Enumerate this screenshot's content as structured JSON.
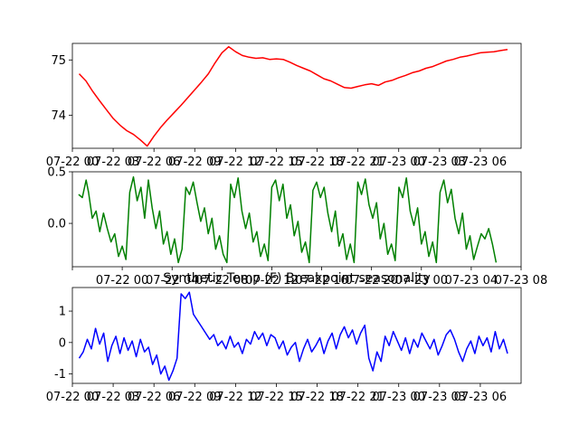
{
  "chart_data": [
    {
      "type": "line",
      "title": "",
      "xlabel": "",
      "ylabel": "",
      "color": "#ff0000",
      "grid": false,
      "ylim": [
        73.4,
        75.3
      ],
      "yticks": [
        74,
        75
      ],
      "xlim": [
        0,
        33
      ],
      "xticks": [
        0,
        3,
        6,
        9,
        12,
        15,
        18,
        21,
        24,
        27,
        30
      ],
      "xtick_labels": [
        "07-22 00",
        "07-22 03",
        "07-22 06",
        "07-22 09",
        "07-22 12",
        "07-22 15",
        "07-22 18",
        "07-22 21",
        "07-23 00",
        "07-23 03",
        "07-23 06"
      ],
      "series": [
        {
          "x": [
            0.5,
            1,
            1.5,
            2,
            2.5,
            3,
            3.5,
            4,
            4.5,
            5,
            5.5,
            6,
            6.5,
            7,
            7.5,
            8,
            8.5,
            9,
            9.5,
            10,
            10.5,
            11,
            11.5,
            12,
            12.5,
            13,
            13.5,
            14,
            14.5,
            15,
            15.5,
            16,
            16.5,
            17,
            17.5,
            18,
            18.5,
            19,
            19.5,
            20,
            20.5,
            21,
            21.5,
            22,
            22.5,
            23,
            23.5,
            24,
            24.5,
            25,
            25.5,
            26,
            26.5,
            27,
            27.5,
            28,
            28.5,
            29,
            29.5,
            30,
            30.5,
            31,
            31.5,
            32
          ],
          "y": [
            74.75,
            74.62,
            74.43,
            74.26,
            74.1,
            73.94,
            73.82,
            73.72,
            73.65,
            73.55,
            73.44,
            73.62,
            73.78,
            73.92,
            74.05,
            74.18,
            74.32,
            74.46,
            74.6,
            74.75,
            74.95,
            75.13,
            75.24,
            75.15,
            75.08,
            75.05,
            75.03,
            75.04,
            75.01,
            75.02,
            75.01,
            74.96,
            74.9,
            74.85,
            74.8,
            74.73,
            74.66,
            74.62,
            74.56,
            74.5,
            74.49,
            74.52,
            74.55,
            74.57,
            74.54,
            74.6,
            74.63,
            74.68,
            74.72,
            74.77,
            74.8,
            74.85,
            74.88,
            74.93,
            74.98,
            75.01,
            75.05,
            75.07,
            75.1,
            75.13,
            75.14,
            75.15,
            75.17,
            75.19
          ]
        }
      ]
    },
    {
      "type": "line",
      "title": "",
      "xlabel": "",
      "ylabel": "",
      "color": "#008000",
      "grid": false,
      "ylim": [
        -0.42,
        0.5
      ],
      "yticks": [
        0.0,
        0.5
      ],
      "ytick_labels": [
        "0.0",
        "0.5"
      ],
      "xlim": [
        0,
        36
      ],
      "xticks": [
        0,
        4,
        8,
        12,
        16,
        20,
        24,
        28,
        32,
        36
      ],
      "xtick_labels": [
        "",
        "07-22 00",
        "07-22 04",
        "07-22 08",
        "07-22 12",
        "07-22 16",
        "07-22 20",
        "07-23 00",
        "07-23 04",
        "07-23 08"
      ],
      "series": [
        {
          "x": [
            0.5,
            0.8,
            1.1,
            1.3,
            1.6,
            1.9,
            2.2,
            2.5,
            2.8,
            3.1,
            3.4,
            3.7,
            4.0,
            4.3,
            4.6,
            4.9,
            5.2,
            5.5,
            5.8,
            6.1,
            6.4,
            6.7,
            7.0,
            7.3,
            7.6,
            7.9,
            8.2,
            8.5,
            8.8,
            9.1,
            9.4,
            9.7,
            10.0,
            10.3,
            10.6,
            10.9,
            11.2,
            11.5,
            11.8,
            12.1,
            12.4,
            12.7,
            13.0,
            13.3,
            13.6,
            13.9,
            14.2,
            14.5,
            14.8,
            15.1,
            15.4,
            15.7,
            16.0,
            16.3,
            16.6,
            16.9,
            17.2,
            17.5,
            17.8,
            18.1,
            18.4,
            18.7,
            19.0,
            19.3,
            19.6,
            19.9,
            20.2,
            20.5,
            20.8,
            21.1,
            21.4,
            21.7,
            22.0,
            22.3,
            22.6,
            22.9,
            23.2,
            23.5,
            23.8,
            24.1,
            24.4,
            24.7,
            25.0,
            25.3,
            25.6,
            25.9,
            26.2,
            26.5,
            26.8,
            27.1,
            27.4,
            27.7,
            28.0,
            28.3,
            28.6,
            28.9,
            29.2,
            29.5,
            29.8,
            30.1,
            30.4,
            30.7,
            31.0,
            31.3,
            31.6,
            31.9,
            32.2,
            32.5,
            32.8,
            33.1,
            33.4,
            33.7,
            34.0
          ],
          "y": [
            0.28,
            0.25,
            0.42,
            0.3,
            0.05,
            0.12,
            -0.08,
            0.1,
            -0.05,
            -0.18,
            -0.1,
            -0.32,
            -0.22,
            -0.35,
            0.3,
            0.45,
            0.22,
            0.35,
            0.05,
            0.42,
            0.15,
            -0.05,
            0.12,
            -0.2,
            -0.08,
            -0.3,
            -0.15,
            -0.38,
            -0.25,
            0.35,
            0.28,
            0.4,
            0.2,
            0.02,
            0.15,
            -0.1,
            0.05,
            -0.25,
            -0.12,
            -0.3,
            -0.38,
            0.38,
            0.25,
            0.44,
            0.12,
            -0.05,
            0.1,
            -0.18,
            -0.08,
            -0.32,
            -0.2,
            -0.36,
            0.35,
            0.42,
            0.22,
            0.38,
            0.05,
            0.18,
            -0.12,
            0.02,
            -0.28,
            -0.18,
            -0.38,
            0.32,
            0.4,
            0.25,
            0.35,
            0.1,
            -0.08,
            0.12,
            -0.22,
            -0.1,
            -0.35,
            -0.2,
            -0.38,
            0.4,
            0.28,
            0.43,
            0.18,
            0.05,
            0.2,
            -0.15,
            0.0,
            -0.3,
            -0.2,
            -0.36,
            0.35,
            0.25,
            0.44,
            0.12,
            -0.02,
            0.15,
            -0.2,
            -0.08,
            -0.32,
            -0.18,
            -0.38,
            0.3,
            0.42,
            0.2,
            0.33,
            0.05,
            -0.1,
            0.1,
            -0.25,
            -0.12,
            -0.35,
            -0.22,
            -0.1,
            -0.15,
            -0.05,
            -0.2,
            -0.38
          ]
        }
      ]
    },
    {
      "type": "line",
      "title": "Synthetic Temp (F) Breakpoint seasonality",
      "xlabel": "",
      "ylabel": "",
      "color": "#0000ff",
      "grid": false,
      "ylim": [
        -1.3,
        1.75
      ],
      "yticks": [
        -1,
        0,
        1
      ],
      "xlim": [
        0,
        33
      ],
      "xticks": [
        0,
        3,
        6,
        9,
        12,
        15,
        18,
        21,
        24,
        27,
        30
      ],
      "xtick_labels": [
        "07-22 00",
        "07-22 03",
        "07-22 06",
        "07-22 09",
        "07-22 12",
        "07-22 15",
        "07-22 18",
        "07-22 21",
        "07-23 00",
        "07-23 03",
        "07-23 06"
      ],
      "series": [
        {
          "x": [
            0.5,
            0.8,
            1.1,
            1.4,
            1.7,
            2.0,
            2.3,
            2.6,
            2.9,
            3.2,
            3.5,
            3.8,
            4.1,
            4.4,
            4.7,
            5.0,
            5.3,
            5.6,
            5.9,
            6.2,
            6.5,
            6.8,
            7.1,
            7.4,
            7.7,
            8.0,
            8.3,
            8.6,
            8.9,
            9.2,
            9.5,
            9.8,
            10.1,
            10.4,
            10.7,
            11.0,
            11.3,
            11.6,
            11.9,
            12.2,
            12.5,
            12.8,
            13.1,
            13.4,
            13.7,
            14.0,
            14.3,
            14.6,
            14.9,
            15.2,
            15.5,
            15.8,
            16.1,
            16.4,
            16.7,
            17.0,
            17.3,
            17.6,
            17.9,
            18.2,
            18.5,
            18.8,
            19.1,
            19.4,
            19.7,
            20.0,
            20.3,
            20.6,
            20.9,
            21.2,
            21.5,
            21.8,
            22.1,
            22.4,
            22.7,
            23.0,
            23.3,
            23.6,
            23.9,
            24.2,
            24.5,
            24.8,
            25.1,
            25.4,
            25.7,
            26.0,
            26.3,
            26.6,
            26.9,
            27.2,
            27.5,
            27.8,
            28.1,
            28.4,
            28.7,
            29.0,
            29.3,
            29.6,
            29.9,
            30.2,
            30.5,
            30.8,
            31.1,
            31.4,
            31.7,
            32.0
          ],
          "y": [
            -0.5,
            -0.3,
            0.1,
            -0.2,
            0.45,
            -0.05,
            0.3,
            -0.6,
            -0.1,
            0.2,
            -0.35,
            0.15,
            -0.25,
            0.05,
            -0.45,
            0.1,
            -0.3,
            -0.15,
            -0.7,
            -0.4,
            -1.0,
            -0.75,
            -1.2,
            -0.9,
            -0.5,
            1.55,
            1.4,
            1.6,
            0.9,
            0.7,
            0.5,
            0.3,
            0.1,
            0.25,
            -0.1,
            0.05,
            -0.2,
            0.2,
            -0.15,
            0.0,
            -0.35,
            0.1,
            -0.05,
            0.35,
            0.1,
            0.3,
            -0.1,
            0.25,
            0.15,
            -0.2,
            0.05,
            -0.4,
            -0.15,
            0.0,
            -0.6,
            -0.2,
            0.1,
            -0.3,
            -0.1,
            0.15,
            -0.35,
            0.05,
            0.3,
            -0.2,
            0.25,
            0.5,
            0.15,
            0.4,
            -0.05,
            0.3,
            0.55,
            -0.5,
            -0.9,
            -0.3,
            -0.6,
            0.2,
            -0.1,
            0.35,
            0.05,
            -0.25,
            0.15,
            -0.35,
            0.1,
            -0.15,
            0.3,
            0.05,
            -0.2,
            0.1,
            -0.4,
            -0.1,
            0.25,
            0.4,
            0.1,
            -0.3,
            -0.6,
            -0.2,
            0.05,
            -0.35,
            0.2,
            -0.1,
            0.15,
            -0.3,
            0.35,
            -0.2,
            0.1,
            -0.35
          ]
        }
      ]
    }
  ]
}
